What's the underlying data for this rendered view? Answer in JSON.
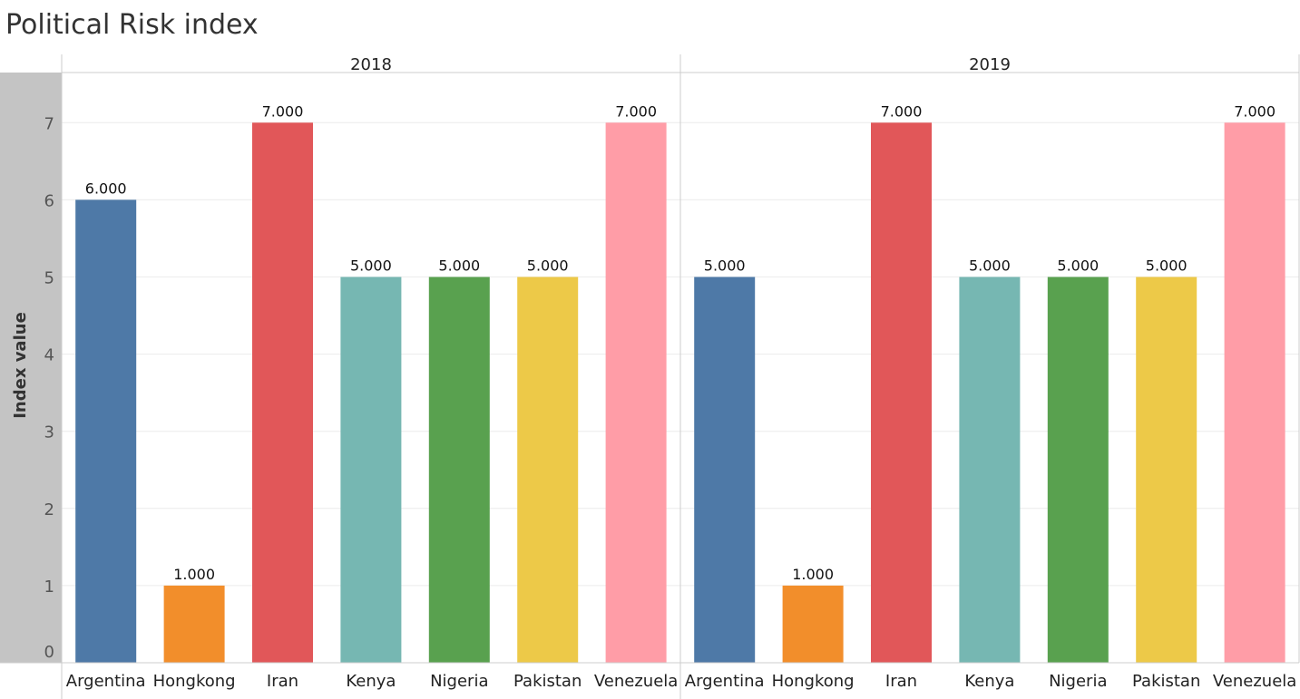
{
  "chart_data": {
    "type": "bar",
    "title": "Political Risk index",
    "ylabel": "Index value",
    "xlabel": "",
    "ylim": [
      0,
      7.6
    ],
    "yticks": [
      0,
      1,
      2,
      3,
      4,
      5,
      6,
      7
    ],
    "grid": true,
    "categories": [
      "Argentina",
      "Hongkong",
      "Iran",
      "Kenya",
      "Nigeria",
      "Pakistan",
      "Venezuela"
    ],
    "colors": [
      "#4e79a7",
      "#f28e2b",
      "#e15759",
      "#76b7b2",
      "#59a14f",
      "#edc948",
      "#ff9da7"
    ],
    "panels": [
      {
        "name": "2018",
        "values": [
          6,
          1,
          7,
          5,
          5,
          5,
          7
        ],
        "labels": [
          "6.000",
          "1.000",
          "7.000",
          "5.000",
          "5.000",
          "5.000",
          "7.000"
        ]
      },
      {
        "name": "2019",
        "values": [
          5,
          1,
          7,
          5,
          5,
          5,
          7
        ],
        "labels": [
          "5.000",
          "1.000",
          "7.000",
          "5.000",
          "5.000",
          "5.000",
          "7.000"
        ]
      }
    ]
  }
}
